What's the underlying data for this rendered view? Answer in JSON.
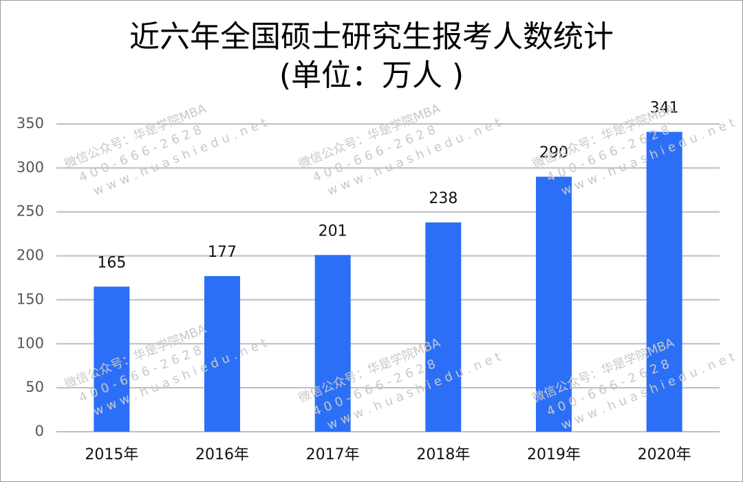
{
  "chart_data": {
    "type": "bar",
    "title": "近六年全国硕士研究生报考人数统计",
    "subtitle": "(单位：万人 )",
    "categories": [
      "2015年",
      "2016年",
      "2017年",
      "2018年",
      "2019年",
      "2020年"
    ],
    "values": [
      165,
      177,
      201,
      238,
      290,
      341
    ],
    "color": "#2b6ff7",
    "ylim": [
      0,
      350
    ],
    "yticks": [
      0,
      50,
      100,
      150,
      200,
      250,
      300,
      350
    ],
    "grid": true,
    "watermark": [
      "微信公众号：华是学院MBA",
      "4 0 0 - 6 6 6 - 2 6 2 8",
      "w w w . h u a s h i e d u . n e t"
    ]
  }
}
